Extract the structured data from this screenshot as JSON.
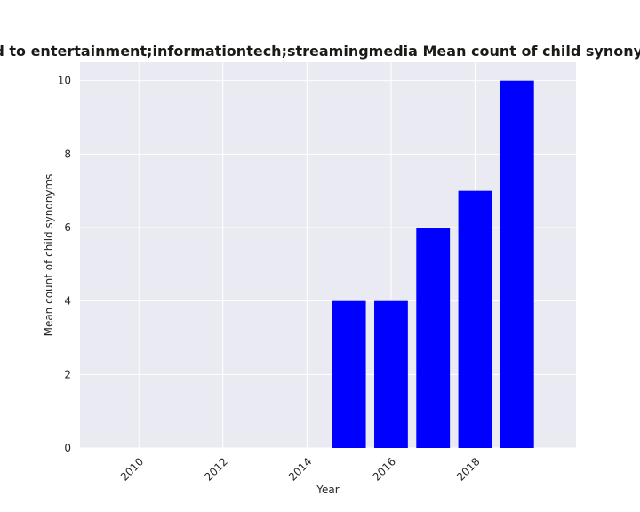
{
  "chart_data": {
    "type": "bar",
    "title": "e related to entertainment;informationtech;streamingmedia Mean count of child synonyms in pr",
    "xlabel": "Year",
    "ylabel": "Mean count of child synonyms",
    "x": [
      2015,
      2016,
      2017,
      2018,
      2019
    ],
    "values": [
      4,
      4,
      6,
      7,
      10
    ],
    "xlim": [
      2008.6,
      2020.4
    ],
    "ylim": [
      0,
      10.5
    ],
    "x_ticks": [
      2010,
      2012,
      2014,
      2016,
      2018
    ],
    "y_ticks": [
      0,
      2,
      4,
      6,
      8,
      10
    ],
    "grid": true,
    "bar_color": "#0000ff",
    "plot_background": "#eaeaf2",
    "grid_color": "#ffffff"
  }
}
